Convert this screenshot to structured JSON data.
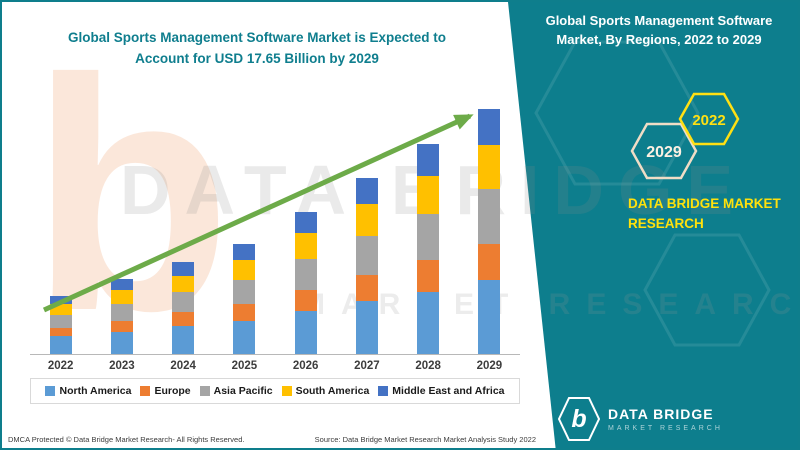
{
  "header": {
    "left_title": "Global Sports Management Software Market is Expected to Account for USD 17.65 Billion by 2029",
    "right_title": "Global Sports Management Software Market, By Regions, 2022 to 2029"
  },
  "panel": {
    "badge_2029": "2029",
    "badge_2022": "2022",
    "brand": "DATA BRIDGE MARKET RESEARCH",
    "logo": {
      "letter": "b",
      "name": "DATA BRIDGE",
      "tagline": "MARKET RESEARCH"
    }
  },
  "watermark": {
    "letter": "b",
    "line1": "DATA BRIDGE",
    "line2": "MARKET RESEARCH"
  },
  "footer": {
    "dmca": "DMCA Protected © Data Bridge Market Research- All Rights Reserved.",
    "source": "Source: Data Bridge Market Research Market Analysis Study 2022"
  },
  "colors": {
    "panel_teal": "#0d7e8d",
    "title_teal": "#0f7e8e",
    "brand_yellow": "#ffe10c",
    "arrow_green": "#6dab49"
  },
  "chart_data": {
    "type": "bar",
    "stacked": true,
    "title": "Global Sports Management Software Market is Expected to Account for USD 17.65 Billion by 2029",
    "xlabel": "",
    "ylabel": "",
    "ylim": [
      0,
      18
    ],
    "grid": false,
    "legend_position": "bottom",
    "annotations": [
      "upward trend arrow from 2022 to 2029"
    ],
    "categories": [
      "2022",
      "2023",
      "2024",
      "2025",
      "2026",
      "2027",
      "2028",
      "2029"
    ],
    "series": [
      {
        "name": "North America",
        "color": "#5B9BD5",
        "values": [
          1.3,
          1.6,
          2.0,
          2.4,
          3.1,
          3.8,
          4.5,
          5.3
        ]
      },
      {
        "name": "Europe",
        "color": "#ED7D31",
        "values": [
          0.6,
          0.8,
          1.0,
          1.2,
          1.5,
          1.9,
          2.3,
          2.65
        ]
      },
      {
        "name": "Asia Pacific",
        "color": "#A5A5A5",
        "values": [
          0.9,
          1.2,
          1.45,
          1.75,
          2.25,
          2.8,
          3.3,
          3.9
        ]
      },
      {
        "name": "South America",
        "color": "#FFC000",
        "values": [
          0.8,
          1.0,
          1.2,
          1.4,
          1.85,
          2.3,
          2.7,
          3.2
        ]
      },
      {
        "name": "Middle East and Africa",
        "color": "#4472C4",
        "values": [
          0.6,
          0.8,
          0.95,
          1.15,
          1.5,
          1.9,
          2.3,
          2.6
        ]
      }
    ],
    "totals": [
      4.2,
      5.4,
      6.6,
      7.9,
      10.2,
      12.7,
      15.1,
      17.65
    ]
  }
}
